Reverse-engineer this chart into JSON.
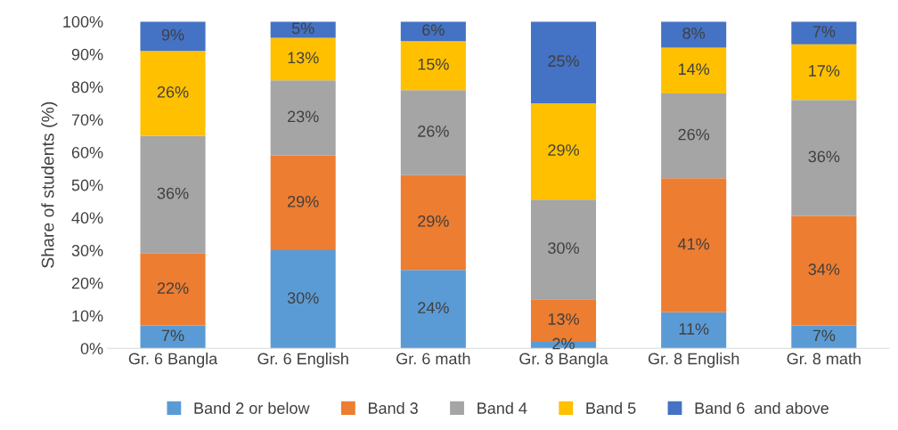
{
  "chart_data": {
    "type": "bar",
    "stacked": true,
    "ylabel": "Share of students (%)",
    "categories": [
      "Gr. 6 Bangla",
      "Gr. 6 English",
      "Gr. 6 math",
      "Gr. 8 Bangla",
      "Gr. 8 English",
      "Gr. 8 math"
    ],
    "series": [
      {
        "name": "Band 2 or below",
        "color": "#5b9bd5",
        "values": [
          7,
          30,
          24,
          2,
          11,
          7
        ],
        "value_labels": [
          "7%",
          "30%",
          "24%",
          "2%",
          "11%",
          "7%"
        ]
      },
      {
        "name": "Band 3",
        "color": "#ed7d31",
        "values": [
          22,
          29,
          29,
          13,
          41,
          33.5
        ],
        "value_labels": [
          "22%",
          "29%",
          "29%",
          "13%",
          "41%",
          "34%"
        ]
      },
      {
        "name": "Band 4",
        "color": "#a5a5a5",
        "values": [
          36,
          23,
          26,
          30.5,
          26,
          35.5
        ],
        "value_labels": [
          "36%",
          "23%",
          "26%",
          "30%",
          "26%",
          "36%"
        ]
      },
      {
        "name": "Band 5",
        "color": "#ffc000",
        "values": [
          26,
          13,
          15,
          29.5,
          14,
          17
        ],
        "value_labels": [
          "26%",
          "13%",
          "15%",
          "29%",
          "14%",
          "17%"
        ]
      },
      {
        "name": "Band 6  and above",
        "color": "#4472c4",
        "values": [
          9,
          5,
          6,
          25,
          8,
          7
        ],
        "value_labels": [
          "9%",
          "5%",
          "6%",
          "25%",
          "8%",
          "7%"
        ]
      }
    ],
    "ylim": [
      0,
      100
    ],
    "yticks": [
      {
        "value": 0,
        "label": "0%"
      },
      {
        "value": 10,
        "label": "10%"
      },
      {
        "value": 20,
        "label": "20%"
      },
      {
        "value": 30,
        "label": "30%"
      },
      {
        "value": 40,
        "label": "40%"
      },
      {
        "value": 50,
        "label": "50%"
      },
      {
        "value": 60,
        "label": "60%"
      },
      {
        "value": 70,
        "label": "70%"
      },
      {
        "value": 80,
        "label": "80%"
      },
      {
        "value": 90,
        "label": "90%"
      },
      {
        "value": 100,
        "label": "100%"
      }
    ],
    "grid": false,
    "legend": "bottom"
  }
}
